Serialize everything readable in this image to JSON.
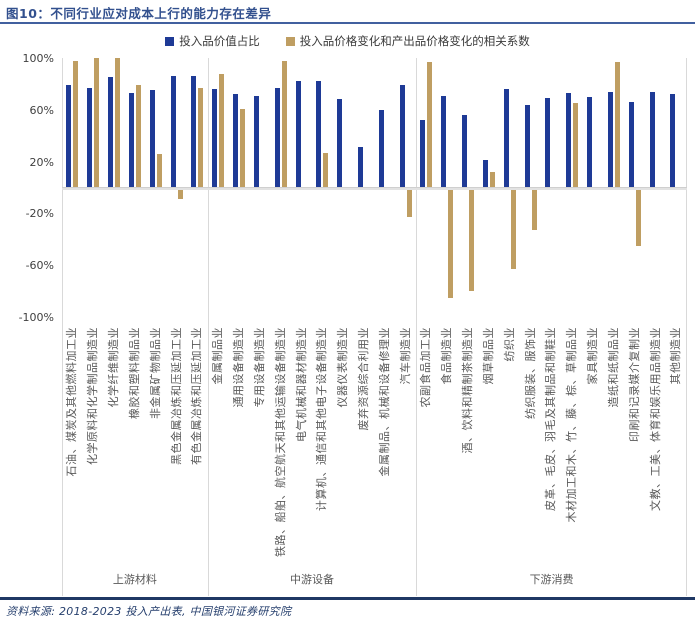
{
  "title": "图10：不同行业应对成本上行的能力存在差异",
  "source": "资料来源: 2018-2023 投入产出表, 中国银河证券研究院",
  "legend": [
    {
      "label": "投入品价值占比",
      "color": "#1e3a96"
    },
    {
      "label": "投入品价格变化和产出品价格变化的相关系数",
      "color": "#bf9e62"
    }
  ],
  "colors": {
    "series_value_share": "#1e3a96",
    "series_correlation": "#bf9e62",
    "title_text": "#32508e",
    "title_rule": "#41609f",
    "bottom_rule": "#1f3864",
    "axis_text": "#404040",
    "category_text": "#595959",
    "gridline": "#d9d9d9"
  },
  "chart_data": {
    "type": "bar",
    "unit": "%",
    "ylim": [
      -100,
      100
    ],
    "yticks": [
      100,
      60,
      20,
      -20,
      -60,
      -100
    ],
    "ytick_labels": [
      "100%",
      "60%",
      "20%",
      "-20%",
      "-60%",
      "-100%"
    ],
    "grid": false,
    "legend_position": "top",
    "series_names": [
      "投入品价值占比",
      "投入品价格变化和产出品价格变化的相关系数"
    ],
    "groups": [
      {
        "name": "上游材料",
        "industries": [
          {
            "label": "石油、煤炭及其他燃料加工业",
            "value_share": 79,
            "correlation": 98
          },
          {
            "label": "化学原料和化学制品制造业",
            "value_share": 77,
            "correlation": 100
          },
          {
            "label": "化学纤维制造业",
            "value_share": 85,
            "correlation": 100
          },
          {
            "label": "橡胶和塑料制品业",
            "value_share": 73,
            "correlation": 79
          },
          {
            "label": "非金属矿物制品业",
            "value_share": 75,
            "correlation": 26
          },
          {
            "label": "黑色金属冶炼和压延加工业",
            "value_share": 86,
            "correlation": -9
          },
          {
            "label": "有色金属冶炼和压延加工业",
            "value_share": 86,
            "correlation": 77
          }
        ]
      },
      {
        "name": "中游设备",
        "industries": [
          {
            "label": "金属制品业",
            "value_share": 76,
            "correlation": 88
          },
          {
            "label": "通用设备制造业",
            "value_share": 72,
            "correlation": 61
          },
          {
            "label": "专用设备制造业",
            "value_share": 71,
            "correlation": null
          },
          {
            "label": "铁路、船舶、航空航天和其他运输设备制造业",
            "value_share": 77,
            "correlation": 98
          },
          {
            "label": "电气机械和器材制造业",
            "value_share": 82,
            "correlation": null
          },
          {
            "label": "计算机、通信和其他电子设备制造业",
            "value_share": 82,
            "correlation": 27
          },
          {
            "label": "仪器仪表制造业",
            "value_share": 68,
            "correlation": null
          },
          {
            "label": "废弃资源综合利用业",
            "value_share": 31,
            "correlation": null
          },
          {
            "label": "金属制品、机械和设备修理业",
            "value_share": 60,
            "correlation": null
          },
          {
            "label": "汽车制造业",
            "value_share": 79,
            "correlation": -23
          }
        ]
      },
      {
        "name": "下游消费",
        "industries": [
          {
            "label": "农副食品加工业",
            "value_share": 52,
            "correlation": 97
          },
          {
            "label": "食品制造业",
            "value_share": 71,
            "correlation": -85
          },
          {
            "label": "酒、饮料和精制茶制造业",
            "value_share": 56,
            "correlation": -80
          },
          {
            "label": "烟草制品业",
            "value_share": 21,
            "correlation": 12
          },
          {
            "label": "纺织业",
            "value_share": 76,
            "correlation": -63
          },
          {
            "label": "纺织服装、服饰业",
            "value_share": 64,
            "correlation": -33
          },
          {
            "label": "皮革、毛皮、羽毛及其制品和制鞋业",
            "value_share": 69,
            "correlation": null
          },
          {
            "label": "木材加工和木、竹、藤、棕、草制品业",
            "value_share": 73,
            "correlation": 65
          },
          {
            "label": "家具制造业",
            "value_share": 70,
            "correlation": null
          },
          {
            "label": "造纸和纸制品业",
            "value_share": 74,
            "correlation": 97
          },
          {
            "label": "印刷和记录媒介复制业",
            "value_share": 66,
            "correlation": -45
          },
          {
            "label": "文教、工美、体育和娱乐用品制造业",
            "value_share": 74,
            "correlation": null
          },
          {
            "label": "其他制造业",
            "value_share": 72,
            "correlation": null
          }
        ]
      }
    ]
  }
}
